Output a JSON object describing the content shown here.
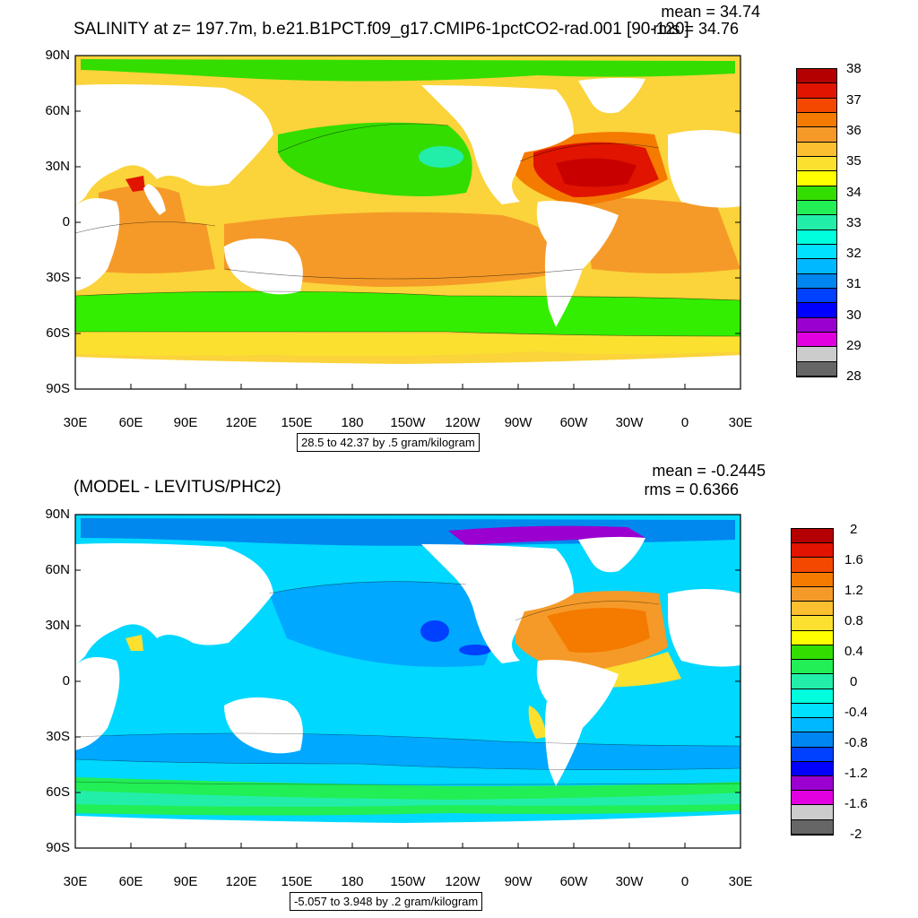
{
  "top": {
    "title": "SALINITY at z= 197.7m, b.e21.B1PCT.f09_g17.CMIP6-1pctCO2-rad.001 [90-120]",
    "mean": "mean = 34.74",
    "rms": "rms = 34.76",
    "range": "28.5 to 42.37 by .5 gram/kilogram",
    "colorbar": {
      "labels": [
        "38",
        "37",
        "36",
        "35",
        "34",
        "33",
        "32",
        "31",
        "30",
        "29",
        "28"
      ],
      "colors": [
        "#b40000",
        "#e01400",
        "#f44800",
        "#f57a00",
        "#f59a28",
        "#fbbf30",
        "#fbe030",
        "#ffff00",
        "#33dd00",
        "#22ee55",
        "#22eeaa",
        "#00ffdd",
        "#00e0ff",
        "#00b8ff",
        "#0086f0",
        "#0040ff",
        "#0000ff",
        "#9a00d0",
        "#e000e0",
        "#cccccc",
        "#666666"
      ]
    }
  },
  "bottom": {
    "title": "(MODEL - LEVITUS/PHC2)",
    "mean": "mean = -0.2445",
    "rms": "rms = 0.6366",
    "range": "-5.057 to 3.948 by .2 gram/kilogram",
    "colorbar": {
      "labels": [
        "2",
        "1.6",
        "1.2",
        "0.8",
        "0.4",
        "0",
        "-0.4",
        "-0.8",
        "-1.2",
        "-1.6",
        "-2"
      ],
      "colors": [
        "#b40000",
        "#e01400",
        "#f44800",
        "#f57a00",
        "#f59a28",
        "#fbbf30",
        "#fbe030",
        "#ffff00",
        "#33dd00",
        "#22ee55",
        "#22eeaa",
        "#00ffdd",
        "#00e0ff",
        "#00b8ff",
        "#0086f0",
        "#0040ff",
        "#0000ff",
        "#9a00d0",
        "#e000e0",
        "#cccccc",
        "#666666"
      ]
    }
  },
  "axes": {
    "lat_labels": [
      "90N",
      "60N",
      "30N",
      "0",
      "30S",
      "60S",
      "90S"
    ],
    "lon_labels": [
      "30E",
      "60E",
      "90E",
      "120E",
      "150E",
      "180",
      "150W",
      "120W",
      "90W",
      "60W",
      "30W",
      "0",
      "30E"
    ]
  },
  "colors": {
    "land": "#ffffff",
    "pacific_fill": "#fbd33a",
    "north_pacific": "#33dd00",
    "southern_ocean": "#33ee00",
    "atlantic_max": "#c80000",
    "diff_base": "#00c8ff",
    "diff_arctic": "#0088ee"
  }
}
